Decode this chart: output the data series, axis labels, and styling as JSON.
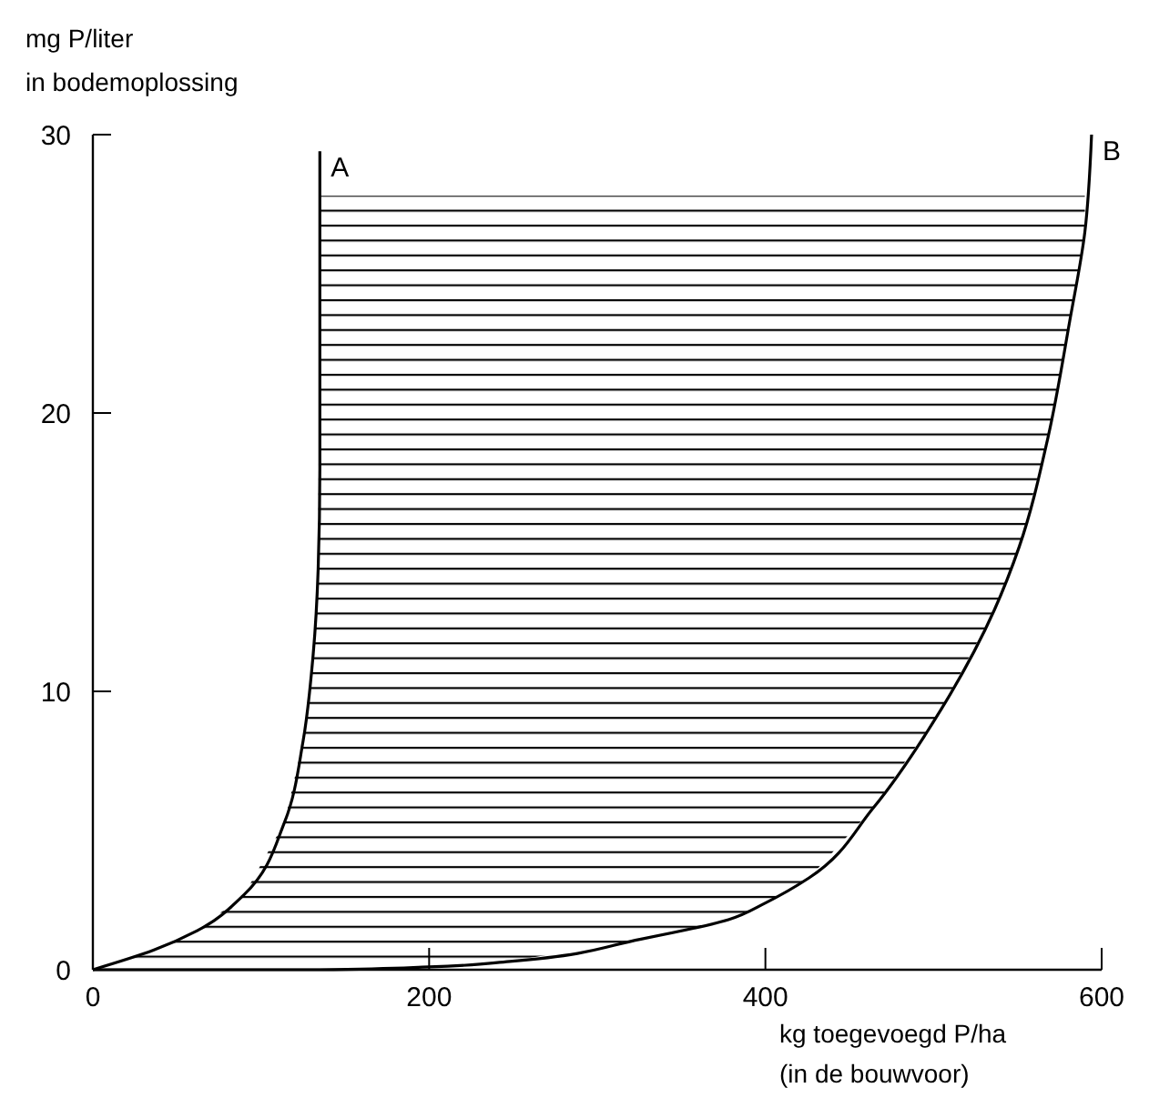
{
  "chart_data": {
    "type": "line",
    "ylabel": "mg P/liter\nin bodemoplossing",
    "xlabel": "kg toegevoegd P/ha\n(in de bouwvoor)",
    "xlim": [
      0,
      600
    ],
    "ylim": [
      0,
      30
    ],
    "xticks": [
      0,
      200,
      400,
      600
    ],
    "yticks": [
      0,
      10,
      20,
      30
    ],
    "marker": "none",
    "line_style": "solid",
    "series": [
      {
        "name": "A",
        "color": "#000000",
        "x": [
          0,
          36,
          62,
          90,
          114,
          125,
          131,
          134,
          135,
          135,
          135
        ],
        "values": [
          0,
          0.7,
          1.4,
          2.7,
          5.3,
          8.2,
          11.3,
          14.4,
          18,
          24,
          29.4
        ]
      },
      {
        "name": "B",
        "color": "#000000",
        "x": [
          0,
          36,
          62,
          90,
          114,
          125,
          131,
          134,
          135,
          200,
          248,
          326,
          378,
          400,
          426,
          464,
          504,
          536,
          551,
          568,
          581,
          590,
          594
        ],
        "values": [
          0,
          0,
          0,
          0,
          0,
          0,
          0,
          0,
          0,
          0.1,
          0.3,
          1.1,
          1.8,
          2.4,
          3.3,
          5.8,
          9.3,
          12.9,
          15.2,
          19.1,
          23.3,
          26.5,
          30
        ],
        "lower": [
          0,
          0,
          0,
          0,
          0,
          0,
          0,
          0,
          0,
          0.1,
          0.3,
          1.1,
          1.8,
          2.4,
          3.3,
          5.8,
          9.3,
          12.9,
          15.2,
          19.1,
          23.3,
          26.5,
          null
        ],
        "upper": [
          0,
          0.7,
          1.4,
          2.7,
          5.3,
          8.2,
          11.3,
          14.4,
          27.8,
          27.8,
          27.8,
          27.8,
          27.8,
          27.8,
          27.8,
          27.8,
          27.8,
          27.8,
          27.8,
          27.8,
          27.8,
          27.8,
          null
        ]
      }
    ]
  }
}
